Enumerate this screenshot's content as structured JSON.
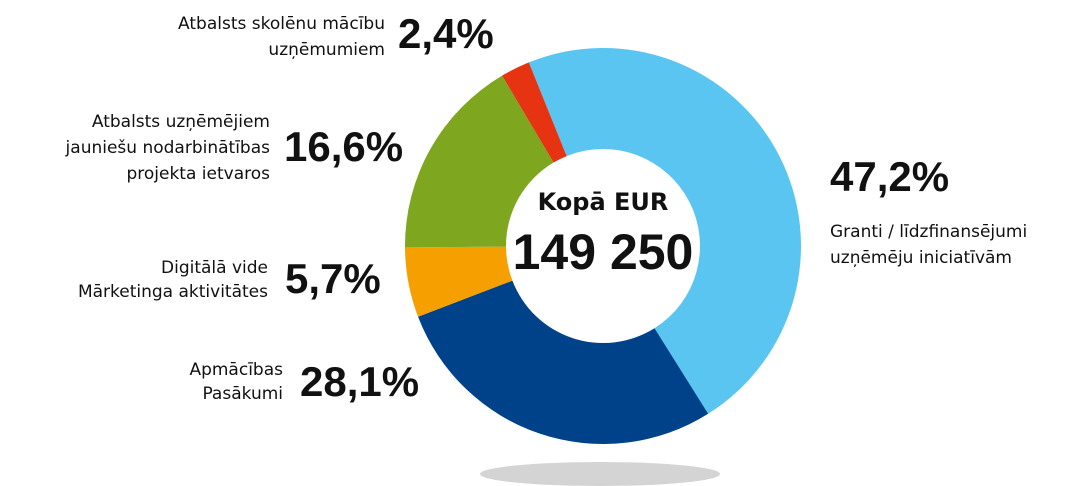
{
  "chart_data": {
    "type": "donut",
    "categories": [
      [
        "Granti / līdzfinansējumi",
        "uzņēmēju iniciatīvām"
      ],
      [
        "Apmācības",
        "Pasākumi"
      ],
      [
        "Digitālā vide",
        "Mārketinga aktivitātes"
      ],
      [
        "Atbalsts uzņēmējiem",
        "jauniešu nodarbinātības",
        "projekta ietvaros"
      ],
      [
        "Atbalsts skolēnu mācību",
        "uzņēmumiem"
      ]
    ],
    "values": [
      47.2,
      28.1,
      5.7,
      16.6,
      2.4
    ],
    "value_labels": [
      "47,2%",
      "28,1%",
      "5,7%",
      "16,6%",
      "2,4%"
    ],
    "colors": [
      "#5bc5f2",
      "#004289",
      "#f5a000",
      "#7ea61e",
      "#e63312"
    ],
    "center_title": "Kopā EUR",
    "center_value": "149 250"
  }
}
